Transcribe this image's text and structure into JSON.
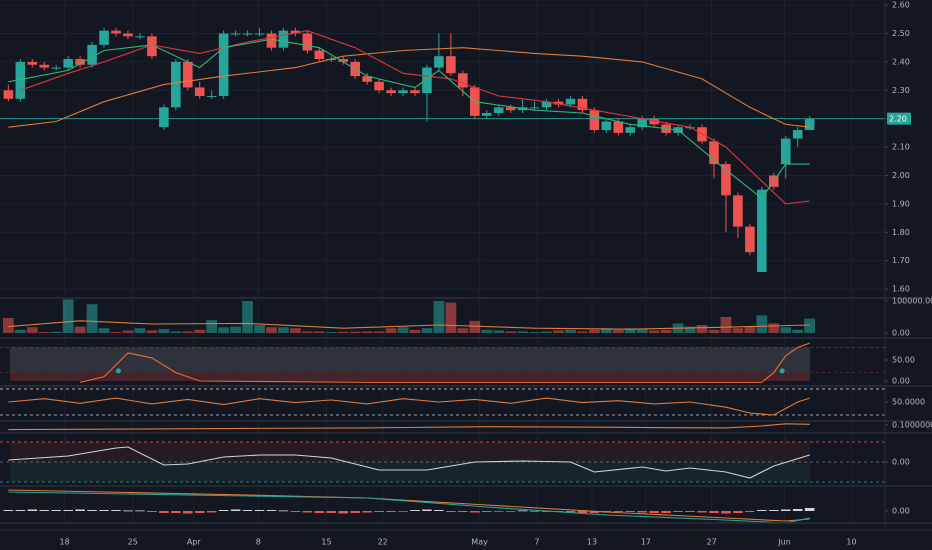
{
  "chart_data": [
    {
      "type": "candlestick",
      "xlim": [
        -0.7,
        73.3
      ],
      "xticks": [
        {
          "value": 4.7,
          "label": "18"
        },
        {
          "value": 10.4,
          "label": "25"
        },
        {
          "value": 15.5,
          "label": "Apr"
        },
        {
          "value": 20.9,
          "label": "8"
        },
        {
          "value": 26.6,
          "label": "15"
        },
        {
          "value": 31.3,
          "label": "22"
        },
        {
          "value": 39.4,
          "label": "May"
        },
        {
          "value": 44.2,
          "label": "7"
        },
        {
          "value": 48.8,
          "label": "13"
        },
        {
          "value": 53.3,
          "label": "17"
        },
        {
          "value": 58.8,
          "label": "27"
        },
        {
          "value": 64.9,
          "label": "Jun"
        },
        {
          "value": 70.5,
          "label": "10"
        }
      ],
      "ylim": [
        1.572,
        2.618
      ],
      "yticks": [
        {
          "value": 1.6,
          "label": "1.60"
        },
        {
          "value": 1.7,
          "label": "1.70"
        },
        {
          "value": 1.8,
          "label": "1.80"
        },
        {
          "value": 1.9,
          "label": "1.90"
        },
        {
          "value": 2.0,
          "label": "2.00"
        },
        {
          "value": 2.1,
          "label": "2.10"
        },
        {
          "value": 2.2,
          "label": "2.20"
        },
        {
          "value": 2.3,
          "label": "2.30"
        },
        {
          "value": 2.4,
          "label": "2.40"
        },
        {
          "value": 2.5,
          "label": "2.50"
        },
        {
          "value": 2.6,
          "label": "2.60"
        }
      ],
      "grid": true,
      "up_color": "#26a69a",
      "down_color": "#ef5350",
      "open": [
        2.3,
        2.27,
        2.4,
        2.39,
        2.38,
        2.38,
        2.41,
        2.39,
        2.46,
        2.51,
        2.5,
        2.49,
        2.49,
        2.17,
        2.24,
        2.4,
        2.31,
        2.28,
        2.28,
        2.5,
        2.5,
        2.5,
        2.5,
        2.45,
        2.51,
        2.5,
        2.44,
        2.41,
        2.41,
        2.4,
        2.35,
        2.33,
        2.3,
        2.29,
        2.3,
        2.29,
        2.38,
        2.42,
        2.36,
        2.31,
        2.21,
        2.22,
        2.24,
        2.23,
        2.24,
        2.24,
        2.26,
        2.25,
        2.27,
        2.23,
        2.16,
        2.19,
        2.15,
        2.17,
        2.2,
        2.18,
        2.15,
        2.17,
        2.17,
        2.12,
        2.04,
        1.93,
        1.82,
        1.66,
        2.0,
        2.04,
        2.13,
        2.16
      ],
      "high": [
        2.32,
        2.41,
        2.41,
        2.4,
        2.39,
        2.42,
        2.42,
        2.47,
        2.52,
        2.52,
        2.51,
        2.5,
        2.5,
        2.25,
        2.41,
        2.41,
        2.33,
        2.3,
        2.51,
        2.51,
        2.51,
        2.52,
        2.51,
        2.52,
        2.52,
        2.51,
        2.45,
        2.42,
        2.42,
        2.41,
        2.36,
        2.34,
        2.31,
        2.31,
        2.31,
        2.39,
        2.5,
        2.5,
        2.37,
        2.32,
        2.23,
        2.25,
        2.25,
        2.27,
        2.26,
        2.27,
        2.27,
        2.28,
        2.28,
        2.24,
        2.2,
        2.2,
        2.18,
        2.21,
        2.21,
        2.19,
        2.18,
        2.18,
        2.18,
        2.13,
        2.05,
        1.94,
        1.83,
        1.96,
        2.01,
        2.14,
        2.17,
        2.21
      ],
      "low": [
        2.26,
        2.26,
        2.38,
        2.37,
        2.37,
        2.37,
        2.38,
        2.38,
        2.45,
        2.49,
        2.48,
        2.48,
        2.41,
        2.16,
        2.23,
        2.3,
        2.27,
        2.27,
        2.27,
        2.49,
        2.49,
        2.49,
        2.44,
        2.44,
        2.49,
        2.43,
        2.4,
        2.4,
        2.39,
        2.34,
        2.32,
        2.29,
        2.28,
        2.28,
        2.28,
        2.19,
        2.37,
        2.35,
        2.28,
        2.2,
        2.2,
        2.21,
        2.22,
        2.22,
        2.23,
        2.23,
        2.24,
        2.24,
        2.22,
        2.15,
        2.15,
        2.14,
        2.14,
        2.16,
        2.17,
        2.14,
        2.14,
        2.16,
        2.11,
        1.99,
        1.8,
        1.78,
        1.72,
        1.66,
        1.95,
        1.99,
        2.1,
        2.16
      ],
      "close": [
        2.27,
        2.4,
        2.39,
        2.38,
        2.38,
        2.41,
        2.39,
        2.46,
        2.51,
        2.5,
        2.49,
        2.49,
        2.42,
        2.24,
        2.4,
        2.31,
        2.28,
        2.28,
        2.5,
        2.5,
        2.5,
        2.5,
        2.45,
        2.51,
        2.5,
        2.44,
        2.41,
        2.41,
        2.4,
        2.35,
        2.33,
        2.3,
        2.29,
        2.3,
        2.29,
        2.38,
        2.42,
        2.36,
        2.31,
        2.21,
        2.22,
        2.24,
        2.23,
        2.24,
        2.24,
        2.26,
        2.25,
        2.27,
        2.23,
        2.16,
        2.19,
        2.15,
        2.17,
        2.2,
        2.18,
        2.15,
        2.17,
        2.17,
        2.12,
        2.04,
        1.93,
        1.82,
        1.73,
        1.95,
        1.96,
        2.13,
        2.16,
        2.2
      ],
      "last_price": {
        "value": 2.2,
        "label": "2.20"
      },
      "series": [
        {
          "color": "#e07b39",
          "x": [
            0,
            4,
            8,
            13,
            18,
            24,
            28,
            33,
            38,
            44,
            48,
            53,
            58,
            62,
            65,
            67
          ],
          "values": [
            2.17,
            2.19,
            2.26,
            2.32,
            2.35,
            2.38,
            2.42,
            2.44,
            2.45,
            2.43,
            2.42,
            2.4,
            2.34,
            2.24,
            2.18,
            2.17
          ]
        },
        {
          "color": "#e0353b",
          "x": [
            1,
            5,
            8,
            12,
            16,
            20,
            25,
            29,
            33,
            37,
            41,
            45,
            49,
            53,
            57,
            60,
            63,
            65,
            67
          ],
          "values": [
            2.3,
            2.36,
            2.4,
            2.46,
            2.43,
            2.47,
            2.51,
            2.45,
            2.36,
            2.34,
            2.28,
            2.26,
            2.23,
            2.2,
            2.17,
            2.1,
            1.98,
            1.9,
            1.91
          ]
        },
        {
          "color": "#2fb87a",
          "x": [
            0,
            5,
            8,
            12,
            16,
            18,
            22,
            26,
            30,
            34,
            36,
            39,
            44,
            48,
            52,
            56,
            60,
            63,
            65,
            67
          ],
          "values": [
            2.33,
            2.37,
            2.44,
            2.46,
            2.38,
            2.45,
            2.48,
            2.45,
            2.35,
            2.31,
            2.37,
            2.26,
            2.23,
            2.22,
            2.18,
            2.16,
            2.02,
            1.92,
            2.04,
            2.04
          ]
        }
      ]
    },
    {
      "type": "bar",
      "ylim": [
        -12500,
        112500
      ],
      "yticks": [
        {
          "value": 100000,
          "label": "100000.00"
        },
        {
          "value": 0,
          "label": "0.00"
        }
      ],
      "values": [
        47000,
        10000,
        18000,
        3000,
        4000,
        105000,
        20000,
        90000,
        15000,
        3000,
        8000,
        15000,
        8000,
        12000,
        5000,
        5000,
        10000,
        40000,
        18000,
        20000,
        100000,
        25000,
        18000,
        18000,
        15000,
        5000,
        5000,
        3000,
        4000,
        4000,
        5000,
        5000,
        15000,
        18000,
        10000,
        15000,
        100000,
        95000,
        15000,
        38000,
        10000,
        8000,
        5000,
        5000,
        3000,
        5000,
        8000,
        10000,
        5000,
        10000,
        15000,
        10000,
        15000,
        12000,
        8000,
        10000,
        30000,
        20000,
        25000,
        10000,
        50000,
        15000,
        20000,
        55000,
        30000,
        18000,
        10000,
        45000
      ],
      "series": [
        {
          "color": "#e07b39",
          "x": [
            0,
            6,
            12,
            20,
            28,
            36,
            44,
            52,
            60,
            67
          ],
          "values": [
            20000,
            38000,
            28000,
            30000,
            15000,
            25000,
            15000,
            12000,
            18000,
            25000
          ]
        }
      ]
    },
    {
      "type": "line",
      "ylim": [
        -9.5,
        97.6
      ],
      "yticks": [
        {
          "value": 50,
          "label": "50.00"
        },
        {
          "value": 0,
          "label": "0.00"
        }
      ],
      "levels": [
        {
          "value": 80,
          "color": "#4a4e59",
          "fill": "#363a45"
        },
        {
          "value": 20,
          "color": "#5a2a30",
          "fill": "#4a1f26"
        }
      ],
      "series": [
        {
          "color": "#f0692e",
          "x": [
            6,
            8,
            10,
            12,
            14,
            16,
            30,
            50,
            63,
            64,
            65,
            66,
            67
          ],
          "values": [
            -3,
            10,
            67,
            55,
            20,
            0,
            -3,
            -3,
            -3,
            20,
            60,
            80,
            90
          ]
        },
        {
          "color": "#26a69a",
          "style": "dots",
          "x": [
            9.2,
            64.7
          ],
          "values": [
            24,
            24
          ]
        }
      ]
    },
    {
      "type": "line",
      "ylim": [
        22.3,
        73
      ],
      "yticks": [
        {
          "value": 50,
          "label": "50.0000"
        }
      ],
      "levels": [
        {
          "value": 70,
          "color": "#c8cad0"
        },
        {
          "value": 30,
          "color": "#c8cad0"
        }
      ],
      "series": [
        {
          "color": "#e07b39",
          "x": [
            0,
            3,
            6,
            9,
            12,
            15,
            18,
            21,
            24,
            27,
            30,
            33,
            36,
            39,
            42,
            45,
            48,
            51,
            54,
            57,
            60,
            62,
            64,
            66,
            67
          ],
          "values": [
            50,
            55,
            48,
            56,
            47,
            54,
            46,
            55,
            49,
            53,
            47,
            55,
            50,
            54,
            48,
            56,
            49,
            52,
            47,
            50,
            42,
            33,
            30,
            50,
            56
          ]
        }
      ]
    },
    {
      "type": "line",
      "ylim": [
        0.07,
        0.12
      ],
      "yticks": [
        {
          "value": 0.1,
          "label": "0.10000000"
        }
      ],
      "series": [
        {
          "color": "#e07b39",
          "x": [
            0,
            10,
            20,
            30,
            40,
            50,
            55,
            60,
            63,
            65,
            67
          ],
          "values": [
            0.08,
            0.082,
            0.085,
            0.087,
            0.092,
            0.09,
            0.088,
            0.087,
            0.095,
            0.104,
            0.102
          ]
        }
      ]
    },
    {
      "type": "line",
      "ylim": [
        -115,
        150
      ],
      "yticks": [
        {
          "value": 0,
          "label": "0.00"
        }
      ],
      "levels": [
        {
          "value": 100,
          "color": "#ef5350",
          "fill": "#2a1d24"
        },
        {
          "value": 0,
          "color": "#787b86"
        },
        {
          "value": -100,
          "color": "#26a69a",
          "fill": "#17292a"
        }
      ],
      "series": [
        {
          "color": "#d1d4dc",
          "x": [
            0,
            5,
            9,
            10,
            13,
            15,
            18,
            21,
            24,
            27,
            31,
            35,
            39,
            43,
            47,
            49,
            53,
            55,
            57,
            60,
            62,
            64,
            67
          ],
          "values": [
            10,
            30,
            70,
            75,
            -15,
            -10,
            25,
            35,
            35,
            20,
            -40,
            -40,
            0,
            5,
            0,
            -50,
            -25,
            -45,
            -30,
            -50,
            -80,
            -20,
            35
          ]
        }
      ]
    },
    {
      "type": "line",
      "ylim": [
        -0.011,
        0.026
      ],
      "yticks": [
        {
          "value": 0,
          "label": "0.00"
        }
      ],
      "series": [
        {
          "style": "bars",
          "up_color": "#d1d4dc",
          "down_color": "#ef5350",
          "values": [
            0.001,
            0.001,
            0.0015,
            0.001,
            0.001,
            0.001,
            0.0015,
            0.001,
            0.001,
            0.001,
            0.0005,
            0.0005,
            -0.001,
            -0.002,
            -0.002,
            -0.0025,
            -0.002,
            -0.0015,
            0.001,
            0.0015,
            0.001,
            0.001,
            0.001,
            0.0005,
            -0.001,
            -0.0015,
            -0.002,
            -0.002,
            -0.0025,
            -0.002,
            -0.0015,
            -0.001,
            -0.001,
            -0.0005,
            0.001,
            0.0015,
            0.001,
            -0.001,
            -0.001,
            -0.0015,
            -0.001,
            -0.0005,
            -0.0005,
            0.0005,
            -0.0005,
            -0.001,
            -0.001,
            -0.0015,
            -0.002,
            -0.002,
            -0.0015,
            -0.001,
            -0.001,
            -0.0015,
            -0.002,
            -0.002,
            -0.001,
            -0.001,
            -0.0015,
            -0.002,
            -0.0025,
            -0.002,
            -0.001,
            0.001,
            0.001,
            0.0015,
            0.002,
            0.003
          ]
        },
        {
          "color": "#e07b39",
          "x": [
            0,
            20,
            30,
            40,
            50,
            60,
            65,
            67
          ],
          "values": [
            0.021,
            0.016,
            0.013,
            0.006,
            -0.001,
            -0.007,
            -0.01,
            -0.008
          ]
        },
        {
          "color": "#26a69a",
          "x": [
            0,
            20,
            30,
            40,
            50,
            60,
            65,
            67
          ],
          "values": [
            0.019,
            0.015,
            0.013,
            0.004,
            -0.004,
            -0.009,
            -0.012,
            -0.007
          ]
        }
      ]
    }
  ]
}
